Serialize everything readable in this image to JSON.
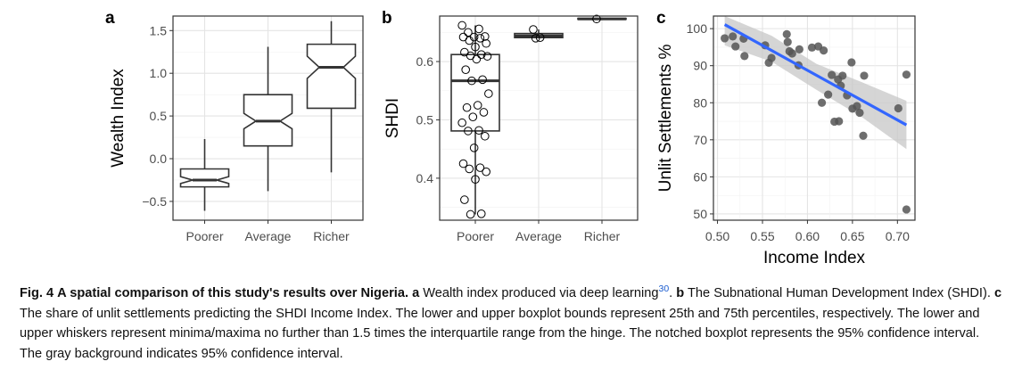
{
  "chart_data": [
    {
      "panel_label": "a",
      "type": "boxplot",
      "notched": true,
      "categories": [
        "Poorer",
        "Average",
        "Richer"
      ],
      "ylabel": "Wealth Index",
      "ylim": [
        -0.72,
        1.67
      ],
      "y_ticks": [
        -0.5,
        0.0,
        0.5,
        1.0,
        1.5
      ],
      "y_tick_labels": [
        "−0.5",
        "0.0",
        "0.5",
        "1.0",
        "1.5"
      ],
      "boxes": [
        {
          "category": "Poorer",
          "min": -0.61,
          "q1": -0.33,
          "median": -0.25,
          "q3": -0.12,
          "max": 0.23,
          "notch": [
            -0.29,
            -0.21
          ]
        },
        {
          "category": "Average",
          "min": -0.38,
          "q1": 0.15,
          "median": 0.44,
          "q3": 0.75,
          "max": 1.31,
          "notch": [
            0.35,
            0.53
          ]
        },
        {
          "category": "Richer",
          "min": -0.16,
          "q1": 0.59,
          "median": 1.07,
          "q3": 1.34,
          "max": 1.61,
          "notch": [
            0.94,
            1.2
          ]
        }
      ],
      "grid": true
    },
    {
      "panel_label": "b",
      "type": "boxplot",
      "categories": [
        "Poorer",
        "Average",
        "Richer"
      ],
      "ylabel": "SHDI",
      "ylim": [
        0.328,
        0.678
      ],
      "y_ticks": [
        0.4,
        0.5,
        0.6
      ],
      "y_tick_labels": [
        "0.4",
        "0.5",
        "0.6"
      ],
      "boxes": [
        {
          "category": "Poorer",
          "min": 0.338,
          "q1": 0.481,
          "median": 0.567,
          "q3": 0.612,
          "max": 0.662
        },
        {
          "category": "Average",
          "min": 0.64,
          "q1": 0.641,
          "median": 0.644,
          "q3": 0.648,
          "max": 0.655
        },
        {
          "category": "Richer",
          "min": 0.673,
          "q1": 0.673,
          "median": 0.673,
          "q3": 0.674,
          "max": 0.674
        }
      ],
      "points": [
        {
          "category": "Poorer",
          "y": [
            0.662,
            0.656,
            0.65,
            0.643,
            0.642,
            0.642,
            0.64,
            0.636,
            0.631,
            0.625,
            0.616,
            0.612,
            0.61,
            0.609,
            0.604,
            0.586,
            0.569,
            0.567,
            0.545,
            0.525,
            0.521,
            0.513,
            0.505,
            0.495,
            0.482,
            0.481,
            0.472,
            0.452,
            0.425,
            0.418,
            0.416,
            0.411,
            0.398,
            0.363,
            0.339,
            0.338
          ]
        },
        {
          "category": "Average",
          "y": [
            0.655,
            0.641,
            0.64
          ]
        },
        {
          "category": "Richer",
          "y": [
            0.673
          ]
        }
      ],
      "grid": true
    },
    {
      "panel_label": "c",
      "type": "scatter",
      "xlabel": "Income Index",
      "ylabel": "Unlit Settlements %",
      "xlim": [
        0.4955,
        0.7195
      ],
      "ylim": [
        48.3,
        103.4
      ],
      "x_ticks": [
        0.5,
        0.55,
        0.6,
        0.65,
        0.7
      ],
      "x_tick_labels": [
        "0.50",
        "0.55",
        "0.60",
        "0.65",
        "0.70"
      ],
      "y_ticks": [
        50,
        60,
        70,
        80,
        90,
        100
      ],
      "y_tick_labels": [
        "50",
        "60",
        "70",
        "80",
        "90",
        "100"
      ],
      "points": [
        {
          "x": 0.508,
          "y": 97.4
        },
        {
          "x": 0.517,
          "y": 97.9
        },
        {
          "x": 0.52,
          "y": 95.2
        },
        {
          "x": 0.529,
          "y": 97.3
        },
        {
          "x": 0.53,
          "y": 92.6
        },
        {
          "x": 0.553,
          "y": 95.5
        },
        {
          "x": 0.557,
          "y": 90.8
        },
        {
          "x": 0.56,
          "y": 92.1
        },
        {
          "x": 0.577,
          "y": 98.5
        },
        {
          "x": 0.578,
          "y": 96.4
        },
        {
          "x": 0.58,
          "y": 93.9
        },
        {
          "x": 0.583,
          "y": 93.3
        },
        {
          "x": 0.59,
          "y": 90.1
        },
        {
          "x": 0.591,
          "y": 94.4
        },
        {
          "x": 0.605,
          "y": 94.9
        },
        {
          "x": 0.612,
          "y": 95.2
        },
        {
          "x": 0.616,
          "y": 80.0
        },
        {
          "x": 0.618,
          "y": 94.1
        },
        {
          "x": 0.623,
          "y": 82.2
        },
        {
          "x": 0.627,
          "y": 87.5
        },
        {
          "x": 0.63,
          "y": 74.9
        },
        {
          "x": 0.634,
          "y": 86.3
        },
        {
          "x": 0.635,
          "y": 75.0
        },
        {
          "x": 0.637,
          "y": 84.6
        },
        {
          "x": 0.639,
          "y": 87.3
        },
        {
          "x": 0.644,
          "y": 82.0
        },
        {
          "x": 0.649,
          "y": 90.9
        },
        {
          "x": 0.65,
          "y": 78.4
        },
        {
          "x": 0.655,
          "y": 79.1
        },
        {
          "x": 0.658,
          "y": 77.3
        },
        {
          "x": 0.662,
          "y": 71.1
        },
        {
          "x": 0.663,
          "y": 87.3
        },
        {
          "x": 0.701,
          "y": 78.5
        },
        {
          "x": 0.71,
          "y": 87.6
        },
        {
          "x": 0.71,
          "y": 51.2
        }
      ],
      "fit_line": {
        "x": [
          0.508,
          0.71
        ],
        "y": [
          101.1,
          74.0
        ],
        "color": "#3366ff"
      },
      "confidence_band": {
        "x": [
          0.508,
          0.56,
          0.61,
          0.66,
          0.71
        ],
        "lower": [
          95.5,
          91.1,
          83.5,
          76.2,
          67.5
        ],
        "upper": [
          106.7,
          98.1,
          90.5,
          85.6,
          80.5
        ]
      },
      "grid": true
    }
  ],
  "caption": {
    "fig_label": "Fig. 4",
    "title": "A spatial comparison of this study's results over Nigeria.",
    "a_label": "a",
    "a_text": "Wealth index produced via deep learning",
    "ref": "30",
    "b_label": "b",
    "b_text": "The Subnational Human Development Index (SHDI).",
    "c_label": "c",
    "c_text": "The share of unlit settlements predicting the SHDI Income Index. The lower and upper boxplot bounds represent 25th and 75th percentiles, respectively. The lower and upper whiskers represent minima/maxima no further than 1.5 times the interquartile range from the hinge. The notched boxplot represents the 95% confidence interval. The gray background indicates 95% confidence interval."
  },
  "colors": {
    "box_stroke": "#333333",
    "point_fill_c": "#555555",
    "fit_line": "#3366ff",
    "band": "#c7c7c7",
    "grid": "#e4e4e4"
  }
}
